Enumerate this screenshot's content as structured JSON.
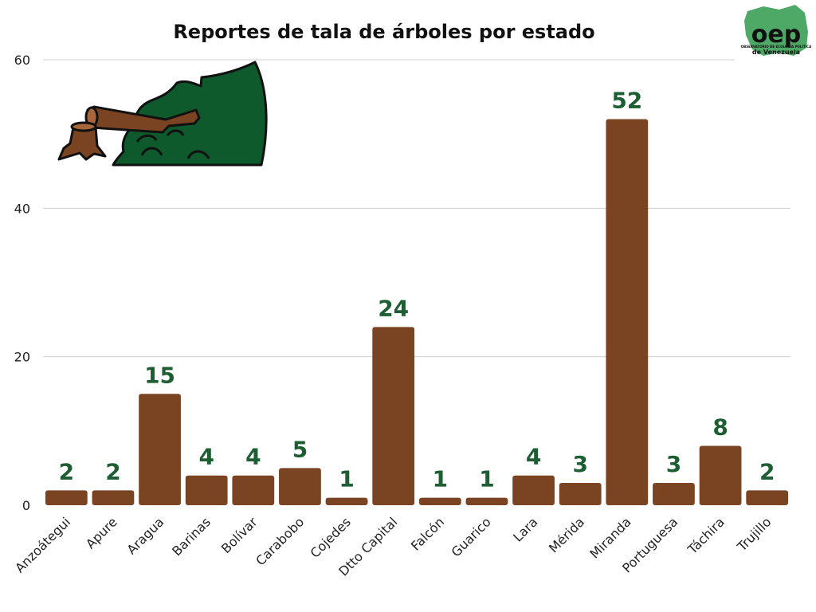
{
  "chart_data": {
    "type": "bar",
    "title": "Reportes de tala de árboles por estado",
    "categories": [
      "Anzoátegui",
      "Apure",
      "Aragua",
      "Barinas",
      "Bolívar",
      "Carabobo",
      "Cojedes",
      "Dtto Capital",
      "Falcón",
      "Guarico",
      "Lara",
      "Mérida",
      "Miranda",
      "Portuguesa",
      "Táchira",
      "Trujillo"
    ],
    "values": [
      2,
      2,
      15,
      4,
      4,
      5,
      1,
      24,
      1,
      1,
      4,
      3,
      52,
      3,
      8,
      2
    ],
    "ylim": [
      0,
      60
    ],
    "yticks": [
      0,
      20,
      40,
      60
    ],
    "grid": true,
    "legend": "none",
    "bar_color": "#7a4422",
    "label_color": "#1e5e33"
  },
  "logo": {
    "letters": "oep",
    "subtitle": "OBSERVATORIO DE ECOLOGÍA POLÍTICA",
    "country": "de Venezuela",
    "color": "#1e7a3a"
  },
  "illustration": {
    "icon": "tree-cutting-icon"
  }
}
